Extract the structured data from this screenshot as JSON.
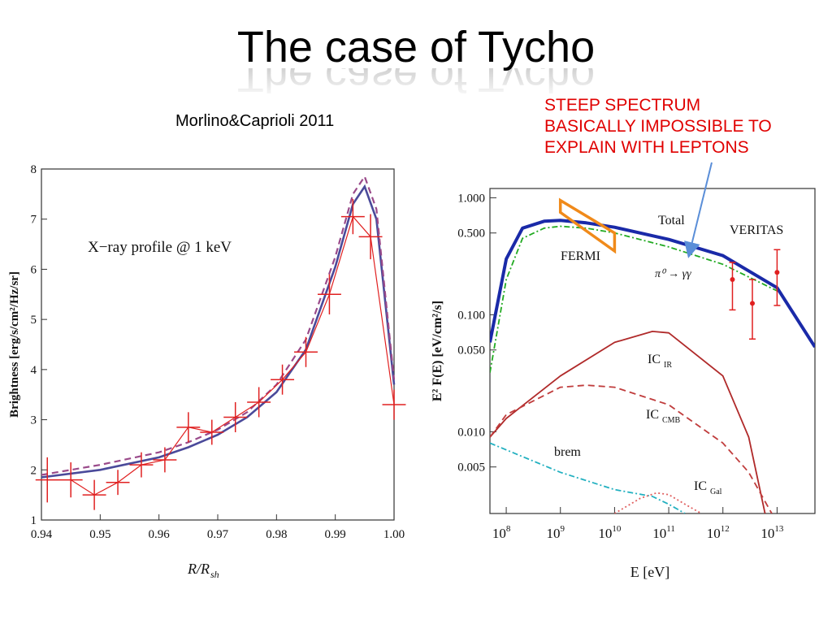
{
  "slide": {
    "title": "The case of Tycho",
    "citation": "Morlino&Caprioli 2011",
    "annotation_lines": [
      "STEEP SPECTRUM",
      "BASICALLY IMPOSSIBLE TO",
      "EXPLAIN WITH LEPTONS"
    ],
    "colors": {
      "annotation": "#e00000",
      "arrow": "#5a8ed8"
    }
  },
  "chart_data": [
    {
      "type": "line",
      "title": "X−ray profile @ 1 keV",
      "xlabel": "R/R",
      "xlabel_sub": "sh",
      "ylabel": "Brightness [erg/s/cm²/Hz/sr]",
      "xlim": [
        0.94,
        1.0
      ],
      "ylim": [
        1,
        8
      ],
      "xticks": [
        "0.94",
        "0.95",
        "0.96",
        "0.97",
        "0.98",
        "0.99",
        "1.00"
      ],
      "yticks": [
        "1",
        "2",
        "3",
        "4",
        "5",
        "6",
        "7",
        "8"
      ],
      "grid": false,
      "series": [
        {
          "color": "#4a4a9a",
          "style": "solid",
          "x": [
            0.94,
            0.95,
            0.96,
            0.965,
            0.97,
            0.975,
            0.98,
            0.985,
            0.99,
            0.993,
            0.995,
            0.997,
            1.0
          ],
          "y": [
            1.85,
            2.0,
            2.25,
            2.45,
            2.7,
            3.05,
            3.55,
            4.4,
            6.05,
            7.3,
            7.65,
            7.0,
            3.7
          ]
        },
        {
          "color": "#9a4a8a",
          "style": "dashed",
          "x": [
            0.94,
            0.95,
            0.96,
            0.965,
            0.97,
            0.975,
            0.98,
            0.985,
            0.99,
            0.993,
            0.995,
            0.997,
            1.0
          ],
          "y": [
            1.9,
            2.1,
            2.35,
            2.55,
            2.8,
            3.15,
            3.7,
            4.6,
            6.25,
            7.5,
            7.85,
            7.2,
            3.8
          ]
        },
        {
          "color": "#e02020",
          "style": "errorbars",
          "x": [
            0.941,
            0.945,
            0.949,
            0.953,
            0.957,
            0.961,
            0.965,
            0.969,
            0.973,
            0.977,
            0.981,
            0.985,
            0.989,
            0.993,
            0.996,
            1.0
          ],
          "y": [
            1.8,
            1.8,
            1.5,
            1.75,
            2.1,
            2.2,
            2.85,
            2.75,
            3.05,
            3.35,
            3.8,
            4.35,
            5.5,
            7.05,
            6.65,
            3.3
          ],
          "yerr": [
            0.45,
            0.35,
            0.3,
            0.25,
            0.25,
            0.25,
            0.3,
            0.25,
            0.3,
            0.3,
            0.3,
            0.3,
            0.4,
            0.35,
            0.45,
            0.3
          ],
          "xerr": [
            0.002,
            0.002,
            0.002,
            0.002,
            0.002,
            0.002,
            0.002,
            0.002,
            0.002,
            0.002,
            0.002,
            0.002,
            0.002,
            0.002,
            0.002,
            0.002
          ]
        }
      ]
    },
    {
      "type": "line",
      "xlabel": "E  [eV]",
      "ylabel": "E² F(E)  [eV/cm²/s]",
      "xscale": "log",
      "yscale": "log",
      "xlim": [
        50000000.0,
        50000000000000.0
      ],
      "ylim": [
        0.002,
        1.2
      ],
      "xticks": [
        {
          "base": "10",
          "exp": "8"
        },
        {
          "base": "10",
          "exp": "9"
        },
        {
          "base": "10",
          "exp": "10"
        },
        {
          "base": "10",
          "exp": "11"
        },
        {
          "base": "10",
          "exp": "12"
        },
        {
          "base": "10",
          "exp": "13"
        }
      ],
      "yticks": [
        "1.000",
        "0.500",
        "0.100",
        "0.050",
        "0.010",
        "0.005"
      ],
      "grid": false,
      "labels": {
        "total": "Total",
        "veritas": "VERITAS",
        "fermi": "FERMI",
        "pion": "π⁰ → γγ",
        "ic_ir": "IC",
        "ic_ir_sub": "IR",
        "ic_cmb": "IC",
        "ic_cmb_sub": "CMB",
        "brem": "brem",
        "ic_gal": "IC",
        "ic_gal_sub": "Gal"
      },
      "series": [
        {
          "color": "#1a2aa8",
          "style": "solid-thick",
          "x": [
            50000000.0,
            100000000.0,
            200000000.0,
            500000000.0,
            1000000000.0,
            3000000000.0,
            10000000000.0,
            100000000000.0,
            1000000000000.0,
            10000000000000.0,
            50000000000000.0
          ],
          "y": [
            0.058,
            0.3,
            0.55,
            0.63,
            0.64,
            0.61,
            0.56,
            0.44,
            0.32,
            0.17,
            0.053
          ]
        },
        {
          "color": "#22aa22",
          "style": "dashdot",
          "x": [
            50000000.0,
            100000000.0,
            200000000.0,
            500000000.0,
            1000000000.0,
            3000000000.0,
            10000000000.0,
            100000000000.0,
            1000000000000.0,
            10000000000000.0
          ],
          "y": [
            0.032,
            0.2,
            0.45,
            0.55,
            0.57,
            0.55,
            0.5,
            0.38,
            0.27,
            0.16
          ]
        },
        {
          "color": "#b02a2a",
          "style": "solid",
          "x": [
            50000000.0,
            100000000.0,
            1000000000.0,
            10000000000.0,
            50000000000.0,
            100000000000.0,
            1000000000000.0,
            3000000000000.0,
            6000000000000.0
          ],
          "y": [
            0.009,
            0.013,
            0.03,
            0.058,
            0.072,
            0.07,
            0.03,
            0.009,
            0.002
          ]
        },
        {
          "color": "#c03c3c",
          "style": "dashed",
          "x": [
            50000000.0,
            100000000.0,
            1000000000.0,
            3000000000.0,
            10000000000.0,
            100000000000.0,
            1000000000000.0,
            3000000000000.0,
            8000000000000.0
          ],
          "y": [
            0.009,
            0.014,
            0.024,
            0.025,
            0.024,
            0.017,
            0.008,
            0.0045,
            0.002
          ]
        },
        {
          "color": "#22b0c0",
          "style": "dashdot",
          "x": [
            50000000.0,
            100000000.0,
            1000000000.0,
            10000000000.0,
            50000000000.0,
            100000000000.0,
            200000000000.0
          ],
          "y": [
            0.008,
            0.007,
            0.0045,
            0.0032,
            0.0028,
            0.0024,
            0.002
          ]
        },
        {
          "color": "#e06060",
          "style": "dotted",
          "x": [
            10000000000.0,
            30000000000.0,
            60000000000.0,
            100000000000.0,
            200000000000.0,
            400000000000.0
          ],
          "y": [
            0.002,
            0.0027,
            0.003,
            0.0029,
            0.0024,
            0.002
          ]
        },
        {
          "color": "#e02020",
          "style": "errorbars",
          "x": [
            1500000000000.0,
            3500000000000.0,
            10000000000000.0
          ],
          "y": [
            0.2,
            0.125,
            0.23
          ],
          "yerr_low": [
            0.11,
            0.062,
            0.12
          ],
          "yerr_high": [
            0.28,
            0.2,
            0.36
          ]
        }
      ],
      "fermi_band": {
        "color": "#f08a1a",
        "x": [
          1000000000.0,
          10000000000.0,
          10000000000.0,
          1000000000.0
        ],
        "y": [
          0.95,
          0.5,
          0.35,
          0.75
        ]
      }
    }
  ]
}
